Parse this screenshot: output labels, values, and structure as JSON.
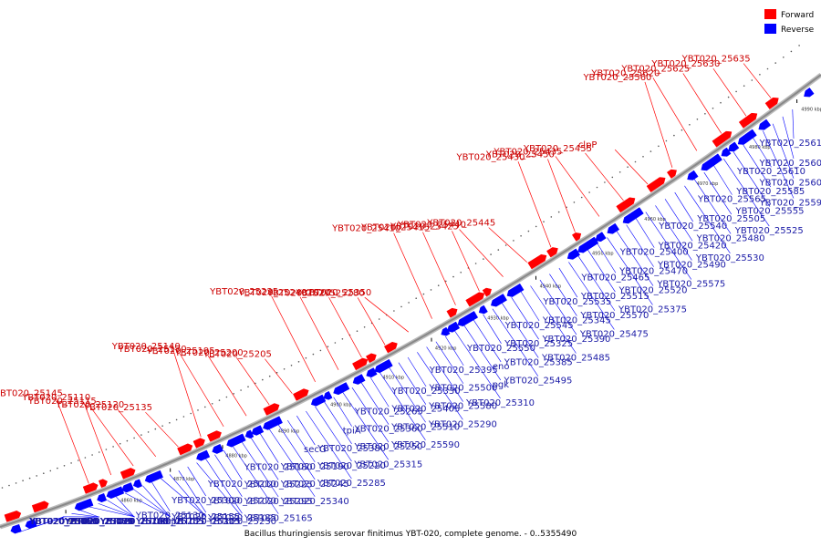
{
  "caption": "Bacillus thuringiensis serovar finitimus YBT-020, complete genome. - 0..5355490",
  "legend": [
    {
      "label": "Forward",
      "color": "#ff0000"
    },
    {
      "label": "Reverse",
      "color": "#0000ff"
    }
  ],
  "colors": {
    "forward": "#ff0000",
    "reverse": "#0000ff",
    "backbone": "#888888"
  },
  "ticks": [
    "4850 kbp",
    "4860 kbp",
    "4870 kbp",
    "4880 kbp",
    "4890 kbp",
    "4900 kbp",
    "4910 kbp",
    "4920 kbp",
    "4930 kbp",
    "4940 kbp",
    "4950 kbp",
    "4960 kbp",
    "4970 kbp",
    "4980 kbp",
    "4990 kbp"
  ],
  "forward_labels": [
    {
      "name": "YBT020_25635"
    },
    {
      "name": "YBT020_25630"
    },
    {
      "name": "YBT020_25625"
    },
    {
      "name": "YBT020_25620"
    },
    {
      "name": "YBT020_25560"
    },
    {
      "name": "clpP"
    },
    {
      "name": "YBT020_25455"
    },
    {
      "name": "YBT020_25435"
    },
    {
      "name": "YBT020_25450"
    },
    {
      "name": "YBT020_25430"
    },
    {
      "name": "YBT020_25445"
    },
    {
      "name": "YBT020_25440"
    },
    {
      "name": "YBT020_25425"
    },
    {
      "name": "YBT020_25415"
    },
    {
      "name": "YBT020_25410"
    },
    {
      "name": "YBT020_25350"
    },
    {
      "name": "YBT020_25280"
    },
    {
      "name": "YBT020_25275"
    },
    {
      "name": "YBT020_25240"
    },
    {
      "name": "YBT020_25235"
    },
    {
      "name": "YBT020_25205"
    },
    {
      "name": "YBT020_25200"
    },
    {
      "name": "YBT020_25195"
    },
    {
      "name": "YBT020_25170"
    },
    {
      "name": "YBT020_25140"
    },
    {
      "name": "YBT020_25135"
    },
    {
      "name": "YBT020_25120"
    },
    {
      "name": "YBT020_25115"
    },
    {
      "name": "YBT020_25110"
    },
    {
      "name": "YBT020_25145"
    }
  ],
  "reverse_labels": [
    {
      "name": "YBT020_25615"
    },
    {
      "name": "YBT020_25600"
    },
    {
      "name": "YBT020_25605"
    },
    {
      "name": "YBT020_25595"
    },
    {
      "name": "YBT020_25610"
    },
    {
      "name": "YBT020_25585"
    },
    {
      "name": "YBT020_25555"
    },
    {
      "name": "YBT020_25525"
    },
    {
      "name": "YBT020_25565"
    },
    {
      "name": "YBT020_25505"
    },
    {
      "name": "YBT020_25480"
    },
    {
      "name": "YBT020_25530"
    },
    {
      "name": "YBT020_25540"
    },
    {
      "name": "YBT020_25420"
    },
    {
      "name": "YBT020_25490"
    },
    {
      "name": "YBT020_25575"
    },
    {
      "name": "YBT020_25400"
    },
    {
      "name": "YBT020_25470"
    },
    {
      "name": "YBT020_25520"
    },
    {
      "name": "YBT020_25375"
    },
    {
      "name": "YBT020_25465"
    },
    {
      "name": "YBT020_25515"
    },
    {
      "name": "YBT020_25570"
    },
    {
      "name": "YBT020_25475"
    },
    {
      "name": "YBT020_25535"
    },
    {
      "name": "YBT020_25345"
    },
    {
      "name": "YBT020_25390"
    },
    {
      "name": "YBT020_25485"
    },
    {
      "name": "YBT020_25545"
    },
    {
      "name": "YBT020_25325"
    },
    {
      "name": "YBT020_25385"
    },
    {
      "name": "YBT020_25495"
    },
    {
      "name": "YBT020_25550"
    },
    {
      "name": "eno"
    },
    {
      "name": "pgk"
    },
    {
      "name": "YBT020_25310"
    },
    {
      "name": "YBT020_25395"
    },
    {
      "name": "YBT020_25500"
    },
    {
      "name": "YBT020_25580"
    },
    {
      "name": "YBT020_25290"
    },
    {
      "name": "YBT020_25330"
    },
    {
      "name": "YBT020_25405"
    },
    {
      "name": "YBT020_25510"
    },
    {
      "name": "YBT020_25590"
    },
    {
      "name": "YBT020_25265"
    },
    {
      "name": "YBT020_25360"
    },
    {
      "name": "YBT020_25250"
    },
    {
      "name": "YBT020_25315"
    },
    {
      "name": "tpiA"
    },
    {
      "name": "YBT020_25380"
    },
    {
      "name": "YBT020_25220"
    },
    {
      "name": "YBT020_25285"
    },
    {
      "name": "secG"
    },
    {
      "name": "YBT020_25190"
    },
    {
      "name": "YBT020_25245"
    },
    {
      "name": "YBT020_25340"
    },
    {
      "name": "YBT020_25180"
    },
    {
      "name": "YBT020_25225"
    },
    {
      "name": "YBT020_25295"
    },
    {
      "name": "YBT020_25165"
    },
    {
      "name": "YBT020_25210"
    },
    {
      "name": "YBT020_25270"
    },
    {
      "name": "YBT020_25185"
    },
    {
      "name": "YBT020_25230"
    },
    {
      "name": "YBT020_25300"
    },
    {
      "name": "YBT020_25155"
    },
    {
      "name": "YBT020_25215"
    },
    {
      "name": "YBT020_25305"
    },
    {
      "name": "YBT020_25130"
    },
    {
      "name": "YBT020_25255"
    },
    {
      "name": "smpB"
    },
    {
      "name": "YBT020_25105"
    },
    {
      "name": "YBT020_25160"
    },
    {
      "name": "YBT020_25260"
    },
    {
      "name": "YBT020_25125"
    },
    {
      "name": "YBT020_25100"
    },
    {
      "name": "YBT020_25175"
    },
    {
      "name": "YBT020_25080"
    },
    {
      "name": "YBT020_25055"
    },
    {
      "name": "YBT020_25020"
    },
    {
      "name": "YBT020_25010"
    },
    {
      "name": "YBT020_25150"
    },
    {
      "name": "YBT020_25090"
    },
    {
      "name": "YBT020_25085"
    }
  ]
}
